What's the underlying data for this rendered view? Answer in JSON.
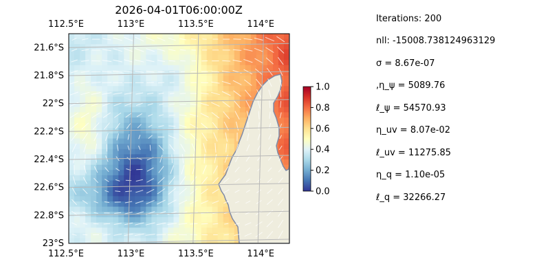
{
  "figure": {
    "title": "2026-04-01T06:00:00Z"
  },
  "map": {
    "lon_range": [
      112.5,
      114.2
    ],
    "lat_range": [
      -23.0,
      -21.5
    ],
    "gridlines": true,
    "colormap": "RdYlBu_r",
    "colors": {
      "ocean_background": "#9db9e0",
      "land": "#efedde",
      "coastline": "#7f8aa6",
      "gridline": "#b8b8b8",
      "arrows": "#ffffff"
    }
  },
  "chart_data": {
    "type": "heatmap",
    "title": "2026-04-01T06:00:00Z",
    "x_ticks": [
      {
        "value": 112.5,
        "label": "112.5°E"
      },
      {
        "value": 113.0,
        "label": "113°E"
      },
      {
        "value": 113.5,
        "label": "113.5°E"
      },
      {
        "value": 114.0,
        "label": "114°E"
      }
    ],
    "y_ticks": [
      {
        "value": -21.6,
        "label": "21.6°S"
      },
      {
        "value": -21.8,
        "label": "21.8°S"
      },
      {
        "value": -22.0,
        "label": "22°S"
      },
      {
        "value": -22.2,
        "label": "22.2°S"
      },
      {
        "value": -22.4,
        "label": "22.4°S"
      },
      {
        "value": -22.6,
        "label": "22.6°S"
      },
      {
        "value": -22.8,
        "label": "22.8°S"
      },
      {
        "value": -23.0,
        "label": "23°S"
      }
    ],
    "xlim": [
      112.5,
      114.2
    ],
    "ylim": [
      -23.0,
      -21.5
    ],
    "colorbar": {
      "range": [
        0.0,
        1.0
      ],
      "ticks": [
        {
          "value": 0.0,
          "label": "0.0"
        },
        {
          "value": 0.2,
          "label": "0.2"
        },
        {
          "value": 0.4,
          "label": "0.4"
        },
        {
          "value": 0.6,
          "label": "0.6"
        },
        {
          "value": 0.8,
          "label": "0.8"
        },
        {
          "value": 1.0,
          "label": "1.0"
        }
      ]
    }
  },
  "parameters": [
    "Iterations: 200",
    "nll: -15008.738124963129",
    "σ = 8.67e-07",
    ",η_ψ = 5089.76",
    "ℓ_ψ = 54570.93",
    "η_uv = 8.07e-02",
    "ℓ_uv = 11275.85",
    "η_q = 1.10e-05",
    "ℓ_q = 32266.27"
  ]
}
